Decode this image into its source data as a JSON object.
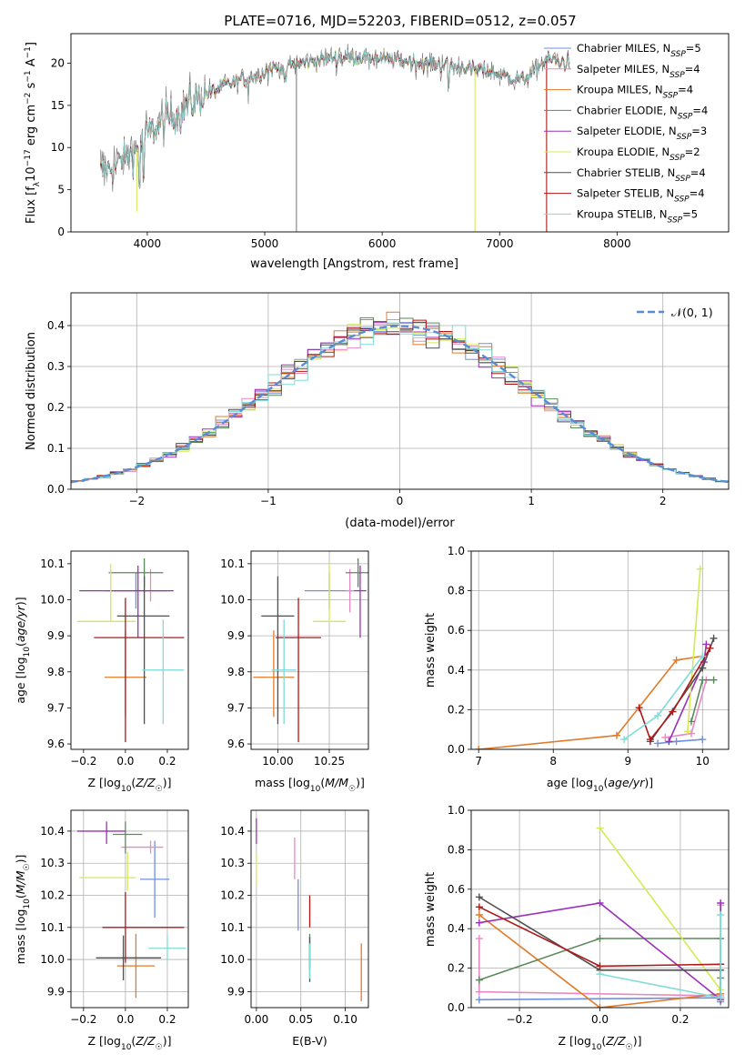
{
  "figure_title": "PLATE=0716, MJD=52203, FIBERID=0512, z=0.057",
  "palette": {
    "Chabrier MILES": "#6f8fdf",
    "Salpeter MILES": "#e78ac3",
    "Kroupa MILES": "#e07b2a",
    "Chabrier ELODIE": "#5a8a5a",
    "Salpeter ELODIE": "#9b30b8",
    "Kroupa ELODIE": "#d4ea55",
    "Chabrier STELIB": "#4f4f4f",
    "Salpeter STELIB": "#b01818",
    "Kroupa STELIB": "#7fdcd8",
    "data": "#808080",
    "normal": "#5b8bd6"
  },
  "chart_data": [
    {
      "id": "spectrum",
      "type": "line",
      "title": "PLATE=0716, MJD=52203, FIBERID=0512, z=0.057",
      "xlabel": "wavelength [Angstrom, rest frame]",
      "ylabel": "Flux [fλ10⁻¹⁷ erg cm⁻² s⁻¹ A⁻¹]",
      "xlim": [
        3350,
        8950
      ],
      "ylim": [
        0,
        23.5
      ],
      "xticks": [
        4000,
        5000,
        6000,
        7000,
        8000
      ],
      "yticks": [
        0,
        5,
        10,
        15,
        20
      ],
      "grid": false,
      "legend": "upper right",
      "continuum": [
        [
          3600,
          7.0
        ],
        [
          3750,
          8.0
        ],
        [
          3900,
          9.5
        ],
        [
          4000,
          11.5
        ],
        [
          4150,
          13.2
        ],
        [
          4300,
          14.5
        ],
        [
          4500,
          16.5
        ],
        [
          4700,
          17.5
        ],
        [
          4900,
          18.5
        ],
        [
          5100,
          19.5
        ],
        [
          5300,
          20.0
        ],
        [
          5500,
          20.5
        ],
        [
          5800,
          20.8
        ],
        [
          6000,
          20.5
        ],
        [
          6200,
          20.3
        ],
        [
          6500,
          19.8
        ],
        [
          6800,
          19.3
        ],
        [
          7000,
          18.7
        ],
        [
          7200,
          18.0
        ],
        [
          7400,
          20.5
        ],
        [
          7500,
          20.2
        ],
        [
          7600,
          20.0
        ]
      ],
      "series": [
        {
          "name": "Chabrier MILES, N_SSP=5",
          "label": "Chabrier MILES, N",
          "sub": "SSP",
          "tail": "=5",
          "kind": "model"
        },
        {
          "name": "Salpeter MILES, N_SSP=4",
          "label": "Salpeter MILES, N",
          "sub": "SSP",
          "tail": "=4",
          "kind": "model"
        },
        {
          "name": "Kroupa MILES, N_SSP=4",
          "label": "Kroupa MILES, N",
          "sub": "SSP",
          "tail": "=4",
          "kind": "model"
        },
        {
          "name": "Chabrier ELODIE, N_SSP=4",
          "label": "Chabrier ELODIE, N",
          "sub": "SSP",
          "tail": "=4",
          "kind": "model"
        },
        {
          "name": "Salpeter ELODIE, N_SSP=3",
          "label": "Salpeter ELODIE, N",
          "sub": "SSP",
          "tail": "=3",
          "kind": "model"
        },
        {
          "name": "Kroupa ELODIE, N_SSP=2",
          "label": "Kroupa ELODIE, N",
          "sub": "SSP",
          "tail": "=2",
          "kind": "model"
        },
        {
          "name": "Chabrier STELIB, N_SSP=4",
          "label": "Chabrier STELIB, N",
          "sub": "SSP",
          "tail": "=4",
          "kind": "model"
        },
        {
          "name": "Salpeter STELIB, N_SSP=4",
          "label": "Salpeter STELIB, N",
          "sub": "SSP",
          "tail": "=4",
          "kind": "model"
        },
        {
          "name": "Kroupa STELIB, N_SSP=5",
          "label": "Kroupa STELIB, N",
          "sub": "SSP",
          "tail": "=5",
          "kind": "model"
        }
      ]
    },
    {
      "id": "residuals",
      "type": "histogram",
      "xlabel": "(data-model)/error",
      "ylabel": "Normed distribution",
      "xlim": [
        -2.5,
        2.5
      ],
      "ylim": [
        0,
        0.48
      ],
      "xticks": [
        -2,
        -1,
        0,
        1,
        2
      ],
      "yticks": [
        0.0,
        0.1,
        0.2,
        0.3,
        0.4
      ],
      "grid": true,
      "legend": "upper right",
      "reference": {
        "name": "N(0,1)",
        "label": "𝒩(0, 1)",
        "mean": 0,
        "sigma": 1
      },
      "bin_width": 0.1
    },
    {
      "id": "age_vs_Z",
      "type": "errorbar",
      "xlabel": "Z [log10(Z/Z☉)]",
      "ylabel": "age  [log10(age/yr)]",
      "xlim": [
        -0.26,
        0.3
      ],
      "ylim": [
        9.585,
        10.135
      ],
      "xticks": [
        -0.2,
        0.0,
        0.2
      ],
      "yticks": [
        9.6,
        9.7,
        9.8,
        9.9,
        10.0,
        10.1
      ],
      "grid": false,
      "points": [
        {
          "series": "Chabrier MILES",
          "x": 0.05,
          "xerr": [
            0.15,
            0.15
          ],
          "y": 10.025,
          "yerr": [
            0.05,
            0.05
          ]
        },
        {
          "series": "Salpeter MILES",
          "x": 0.12,
          "xerr": [
            0.18,
            0.04
          ],
          "y": 10.025,
          "yerr": [
            0.03,
            0.06
          ]
        },
        {
          "series": "Kroupa MILES",
          "x": 0.0,
          "xerr": [
            0.1,
            0.1
          ],
          "y": 9.785,
          "yerr": [
            0.11,
            0.13
          ]
        },
        {
          "series": "Chabrier ELODIE",
          "x": 0.09,
          "xerr": [
            0.17,
            0.09
          ],
          "y": 10.075,
          "yerr": [
            0.04,
            0.04
          ]
        },
        {
          "series": "Salpeter ELODIE",
          "x": 0.06,
          "xerr": [
            0.28,
            0.17
          ],
          "y": 10.025,
          "yerr": [
            0.13,
            0.07
          ]
        },
        {
          "series": "Kroupa ELODIE",
          "x": -0.07,
          "xerr": [
            0.16,
            0.12
          ],
          "y": 9.94,
          "yerr": [
            0.0,
            0.16
          ]
        },
        {
          "series": "Chabrier STELIB",
          "x": 0.09,
          "xerr": [
            0.13,
            0.12
          ],
          "y": 9.955,
          "yerr": [
            0.3,
            0.11
          ]
        },
        {
          "series": "Salpeter STELIB",
          "x": 0.0,
          "xerr": [
            0.15,
            0.28
          ],
          "y": 9.895,
          "yerr": [
            0.29,
            0.11
          ]
        },
        {
          "series": "Kroupa STELIB",
          "x": 0.18,
          "xerr": [
            0.1,
            0.1
          ],
          "y": 9.805,
          "yerr": [
            0.15,
            0.14
          ]
        }
      ]
    },
    {
      "id": "age_vs_mass",
      "type": "errorbar",
      "xlabel": "mass [log10(M/M☉)]",
      "ylabel": "",
      "xlim": [
        9.87,
        10.44
      ],
      "ylim": [
        9.585,
        10.135
      ],
      "xticks": [
        10.0,
        10.25
      ],
      "yticks": [
        9.6,
        9.7,
        9.8,
        9.9,
        10.0,
        10.1
      ],
      "grid": true,
      "points": [
        {
          "series": "Chabrier MILES",
          "x": 10.25,
          "xerr": [
            0.12,
            0.12
          ],
          "y": 10.025,
          "yerr": [
            0.05,
            0.05
          ]
        },
        {
          "series": "Salpeter MILES",
          "x": 10.35,
          "xerr": [
            0.02,
            0.02
          ],
          "y": 10.025,
          "yerr": [
            0.06,
            0.06
          ]
        },
        {
          "series": "Kroupa MILES",
          "x": 9.98,
          "xerr": [
            0.1,
            0.1
          ],
          "y": 9.785,
          "yerr": [
            0.11,
            0.13
          ]
        },
        {
          "series": "Chabrier ELODIE",
          "x": 10.39,
          "xerr": [
            0.06,
            0.06
          ],
          "y": 10.075,
          "yerr": [
            0.04,
            0.04
          ]
        },
        {
          "series": "Salpeter ELODIE",
          "x": 10.4,
          "xerr": [
            0.03,
            0.03
          ],
          "y": 10.025,
          "yerr": [
            0.13,
            0.07
          ]
        },
        {
          "series": "Kroupa ELODIE",
          "x": 10.25,
          "xerr": [
            0.08,
            0.08
          ],
          "y": 9.94,
          "yerr": [
            0.0,
            0.16
          ]
        },
        {
          "series": "Chabrier STELIB",
          "x": 10.0,
          "xerr": [
            0.08,
            0.08
          ],
          "y": 9.955,
          "yerr": [
            0.3,
            0.11
          ]
        },
        {
          "series": "Salpeter STELIB",
          "x": 10.1,
          "xerr": [
            0.11,
            0.11
          ],
          "y": 9.895,
          "yerr": [
            0.29,
            0.11
          ]
        },
        {
          "series": "Kroupa STELIB",
          "x": 10.03,
          "xerr": [
            0.06,
            0.06
          ],
          "y": 9.805,
          "yerr": [
            0.15,
            0.14
          ]
        }
      ]
    },
    {
      "id": "weight_vs_age",
      "type": "line",
      "xlabel": "age  [log10(age/yr)]",
      "ylabel": "mass weight",
      "xlim": [
        6.9,
        10.35
      ],
      "ylim": [
        0,
        1.0
      ],
      "xticks": [
        7,
        8,
        9,
        10
      ],
      "yticks": [
        0.0,
        0.2,
        0.4,
        0.6,
        0.8,
        1.0
      ],
      "grid": true,
      "series": [
        {
          "name": "Chabrier MILES",
          "x": [
            9.4,
            9.65,
            10.0
          ],
          "y": [
            0.03,
            0.04,
            0.05
          ]
        },
        {
          "name": "Salpeter MILES",
          "x": [
            9.5,
            9.85,
            10.05
          ],
          "y": [
            0.06,
            0.08,
            0.35
          ]
        },
        {
          "name": "Kroupa MILES",
          "x": [
            7.0,
            8.85,
            9.65,
            10.0
          ],
          "y": [
            0.0,
            0.07,
            0.45,
            0.47
          ]
        },
        {
          "name": "Chabrier ELODIE",
          "x": [
            9.85,
            10.0,
            10.15
          ],
          "y": [
            0.14,
            0.35,
            0.35
          ]
        },
        {
          "name": "Salpeter ELODIE",
          "x": [
            9.55,
            10.02,
            10.05
          ],
          "y": [
            0.04,
            0.44,
            0.53
          ]
        },
        {
          "name": "Kroupa ELODIE",
          "x": [
            9.8,
            9.97
          ],
          "y": [
            0.09,
            0.91
          ]
        },
        {
          "name": "Chabrier STELIB",
          "x": [
            9.3,
            10.0,
            10.15
          ],
          "y": [
            0.04,
            0.41,
            0.56
          ]
        },
        {
          "name": "Salpeter STELIB",
          "x": [
            9.15,
            9.3,
            9.6,
            10.1
          ],
          "y": [
            0.21,
            0.05,
            0.19,
            0.51
          ]
        },
        {
          "name": "Kroupa STELIB",
          "x": [
            8.95,
            9.4,
            10.0
          ],
          "y": [
            0.05,
            0.17,
            0.47
          ]
        }
      ]
    },
    {
      "id": "mass_vs_Z",
      "type": "errorbar",
      "xlabel": "Z [log10(Z/Z☉)]",
      "ylabel": "mass [log10(M/M☉)]",
      "xlim": [
        -0.26,
        0.3
      ],
      "ylim": [
        9.85,
        10.465
      ],
      "xticks": [
        -0.2,
        0.0,
        0.2
      ],
      "yticks": [
        9.9,
        10.0,
        10.1,
        10.2,
        10.3,
        10.4
      ],
      "grid": true,
      "points": [
        {
          "series": "Chabrier MILES",
          "x": 0.14,
          "xerr": [
            0.07,
            0.07
          ],
          "y": 10.25,
          "yerr": [
            0.12,
            0.12
          ]
        },
        {
          "series": "Salpeter MILES",
          "x": 0.12,
          "xerr": [
            0.14,
            0.06
          ],
          "y": 10.35,
          "yerr": [
            0.02,
            0.02
          ]
        },
        {
          "series": "Kroupa MILES",
          "x": 0.05,
          "xerr": [
            0.09,
            0.09
          ],
          "y": 9.98,
          "yerr": [
            0.1,
            0.1
          ]
        },
        {
          "series": "Chabrier ELODIE",
          "x": 0.0,
          "xerr": [
            0.06,
            0.08
          ],
          "y": 10.39,
          "yerr": [
            0.06,
            0.04
          ]
        },
        {
          "series": "Salpeter ELODIE",
          "x": -0.09,
          "xerr": [
            0.14,
            0.09
          ],
          "y": 10.4,
          "yerr": [
            0.04,
            0.03
          ]
        },
        {
          "series": "Kroupa ELODIE",
          "x": 0.01,
          "xerr": [
            0.23,
            0.04
          ],
          "y": 10.255,
          "yerr": [
            0.04,
            0.08
          ]
        },
        {
          "series": "Chabrier STELIB",
          "x": -0.01,
          "xerr": [
            0.13,
            0.18
          ],
          "y": 10.005,
          "yerr": [
            0.07,
            0.07
          ]
        },
        {
          "series": "Salpeter STELIB",
          "x": 0.0,
          "xerr": [
            0.11,
            0.28
          ],
          "y": 10.1,
          "yerr": [
            0.11,
            0.11
          ]
        },
        {
          "series": "Kroupa STELIB",
          "x": 0.2,
          "xerr": [
            0.09,
            0.09
          ],
          "y": 10.035,
          "yerr": [
            0.04,
            0.04
          ]
        }
      ]
    },
    {
      "id": "mass_vs_EBV",
      "type": "errorbar",
      "xlabel": "E(B-V)",
      "ylabel": "",
      "xlim": [
        -0.006,
        0.126
      ],
      "ylim": [
        9.85,
        10.465
      ],
      "xticks": [
        0.0,
        0.05,
        0.1
      ],
      "yticks": [
        9.9,
        10.0,
        10.1,
        10.2,
        10.3,
        10.4
      ],
      "grid": true,
      "points": [
        {
          "series": "Chabrier MILES",
          "x": 0.047,
          "y": 10.25,
          "yerr": [
            0.16,
            0.0
          ]
        },
        {
          "series": "Salpeter MILES",
          "x": 0.043,
          "y": 10.33,
          "yerr": [
            0.08,
            0.05
          ]
        },
        {
          "series": "Kroupa MILES",
          "x": 0.118,
          "y": 9.96,
          "yerr": [
            0.09,
            0.09
          ]
        },
        {
          "series": "Chabrier ELODIE",
          "x": 0.06,
          "y": 10.03,
          "yerr": [
            0.06,
            0.05
          ]
        },
        {
          "series": "Salpeter ELODIE",
          "x": 0.0,
          "y": 10.4,
          "yerr": [
            0.04,
            0.04
          ]
        },
        {
          "series": "Kroupa ELODIE",
          "x": 0.0,
          "y": 10.28,
          "yerr": [
            0.05,
            0.05
          ]
        },
        {
          "series": "Chabrier STELIB",
          "x": 0.06,
          "y": 10.0,
          "yerr": [
            0.07,
            0.07
          ]
        },
        {
          "series": "Salpeter STELIB",
          "x": 0.06,
          "y": 10.15,
          "yerr": [
            0.05,
            0.05
          ]
        },
        {
          "series": "Kroupa STELIB",
          "x": 0.06,
          "y": 10.0,
          "yerr": [
            0.06,
            0.05
          ]
        }
      ]
    },
    {
      "id": "weight_vs_Z",
      "type": "line",
      "xlabel": "Z [log10(Z/Z☉)]",
      "ylabel": "mass weight",
      "xlim": [
        -0.32,
        0.32
      ],
      "ylim": [
        0,
        1.0
      ],
      "xticks": [
        -0.2,
        0.0,
        0.2
      ],
      "yticks": [
        0.0,
        0.2,
        0.4,
        0.6,
        0.8,
        1.0
      ],
      "grid": true,
      "series": [
        {
          "name": "Chabrier MILES",
          "x": [
            -0.3,
            0.3,
            0.3
          ],
          "y": [
            0.04,
            0.05,
            0.03
          ]
        },
        {
          "name": "Salpeter MILES",
          "x": [
            -0.3,
            -0.3,
            0.3,
            0.3
          ],
          "y": [
            0.35,
            0.08,
            0.06,
            0.52
          ]
        },
        {
          "name": "Kroupa MILES",
          "x": [
            -0.3,
            0.0,
            0.3
          ],
          "y": [
            0.47,
            0.0,
            0.07
          ]
        },
        {
          "name": "Chabrier ELODIE",
          "x": [
            -0.3,
            0.0,
            0.3,
            0.3
          ],
          "y": [
            0.14,
            0.35,
            0.35,
            0.15
          ]
        },
        {
          "name": "Salpeter ELODIE",
          "x": [
            -0.3,
            0.0,
            0.3,
            0.3
          ],
          "y": [
            0.43,
            0.53,
            0.04,
            0.53
          ]
        },
        {
          "name": "Kroupa ELODIE",
          "x": [
            0.0,
            0.3
          ],
          "y": [
            0.91,
            0.09
          ]
        },
        {
          "name": "Chabrier STELIB",
          "x": [
            -0.3,
            0.0,
            0.3,
            0.3
          ],
          "y": [
            0.56,
            0.19,
            0.19,
            0.05
          ]
        },
        {
          "name": "Salpeter STELIB",
          "x": [
            -0.3,
            0.0,
            0.3,
            0.3
          ],
          "y": [
            0.51,
            0.21,
            0.22,
            0.05
          ]
        },
        {
          "name": "Kroupa STELIB",
          "x": [
            0.0,
            0.3,
            0.3
          ],
          "y": [
            0.17,
            0.05,
            0.47
          ]
        }
      ]
    }
  ]
}
